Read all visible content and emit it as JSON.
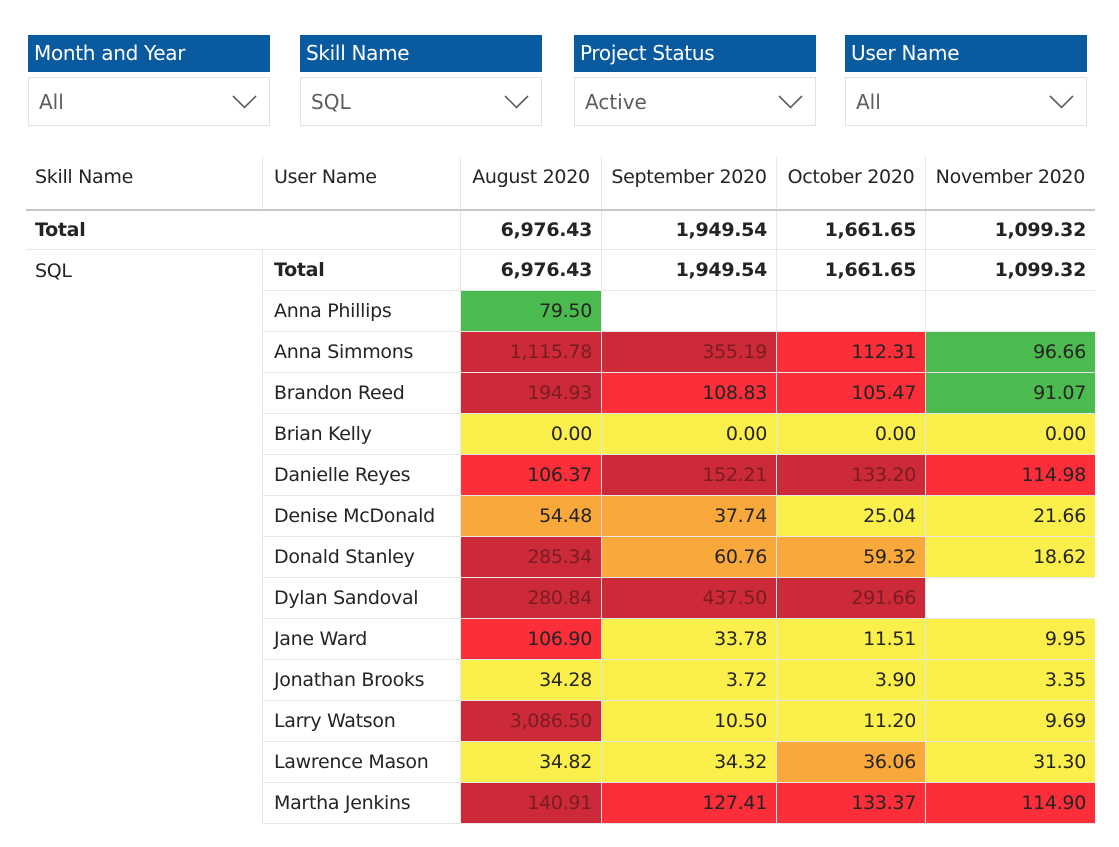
{
  "slicers": [
    {
      "title": "Month and Year",
      "value": "All"
    },
    {
      "title": "Skill Name",
      "value": "SQL"
    },
    {
      "title": "Project Status",
      "value": "Active"
    },
    {
      "title": "User Name",
      "value": "All"
    }
  ],
  "colors": {
    "slicer_header": "#0a5aa0",
    "green": "#4cbb4f",
    "yellow": "#fbef4b",
    "orange": "#f9a83b",
    "red": "#fb2e3a",
    "dark_red": "#cc2a38"
  },
  "icons": {
    "dropdown": "chevron-down-icon"
  },
  "matrix": {
    "headers": {
      "skill": "Skill Name",
      "user": "User Name",
      "months": [
        "August 2020",
        "September 2020",
        "October 2020",
        "November 2020"
      ]
    },
    "grand_total": {
      "label": "Total",
      "values": [
        "6,976.43",
        "1,949.54",
        "1,661.65",
        "1,099.32"
      ]
    },
    "group": {
      "skill": "SQL",
      "subtotal_label": "Total",
      "subtotal_values": [
        "6,976.43",
        "1,949.54",
        "1,661.65",
        "1,099.32"
      ],
      "rows": [
        {
          "user": "Anna Phillips",
          "values": [
            "79.50",
            "",
            "",
            ""
          ],
          "colors": [
            "green",
            "",
            "",
            ""
          ]
        },
        {
          "user": "Anna Simmons",
          "values": [
            "1,115.78",
            "355.19",
            "112.31",
            "96.66"
          ],
          "colors": [
            "dark_red",
            "dark_red",
            "red",
            "green"
          ]
        },
        {
          "user": "Brandon Reed",
          "values": [
            "194.93",
            "108.83",
            "105.47",
            "91.07"
          ],
          "colors": [
            "dark_red",
            "red",
            "red",
            "green"
          ]
        },
        {
          "user": "Brian Kelly",
          "values": [
            "0.00",
            "0.00",
            "0.00",
            "0.00"
          ],
          "colors": [
            "yellow",
            "yellow",
            "yellow",
            "yellow"
          ]
        },
        {
          "user": "Danielle Reyes",
          "values": [
            "106.37",
            "152.21",
            "133.20",
            "114.98"
          ],
          "colors": [
            "red",
            "dark_red",
            "dark_red",
            "red"
          ]
        },
        {
          "user": "Denise McDonald",
          "values": [
            "54.48",
            "37.74",
            "25.04",
            "21.66"
          ],
          "colors": [
            "orange",
            "orange",
            "yellow",
            "yellow"
          ]
        },
        {
          "user": "Donald Stanley",
          "values": [
            "285.34",
            "60.76",
            "59.32",
            "18.62"
          ],
          "colors": [
            "dark_red",
            "orange",
            "orange",
            "yellow"
          ]
        },
        {
          "user": "Dylan Sandoval",
          "values": [
            "280.84",
            "437.50",
            "291.66",
            ""
          ],
          "colors": [
            "dark_red",
            "dark_red",
            "dark_red",
            ""
          ]
        },
        {
          "user": "Jane Ward",
          "values": [
            "106.90",
            "33.78",
            "11.51",
            "9.95"
          ],
          "colors": [
            "red",
            "yellow",
            "yellow",
            "yellow"
          ]
        },
        {
          "user": "Jonathan Brooks",
          "values": [
            "34.28",
            "3.72",
            "3.90",
            "3.35"
          ],
          "colors": [
            "yellow",
            "yellow",
            "yellow",
            "yellow"
          ]
        },
        {
          "user": "Larry Watson",
          "values": [
            "3,086.50",
            "10.50",
            "11.20",
            "9.69"
          ],
          "colors": [
            "dark_red",
            "yellow",
            "yellow",
            "yellow"
          ]
        },
        {
          "user": "Lawrence Mason",
          "values": [
            "34.82",
            "34.32",
            "36.06",
            "31.30"
          ],
          "colors": [
            "yellow",
            "yellow",
            "orange",
            "yellow"
          ]
        },
        {
          "user": "Martha Jenkins",
          "values": [
            "140.91",
            "127.41",
            "133.37",
            "114.90"
          ],
          "colors": [
            "dark_red",
            "red",
            "red",
            "red"
          ]
        }
      ]
    }
  }
}
